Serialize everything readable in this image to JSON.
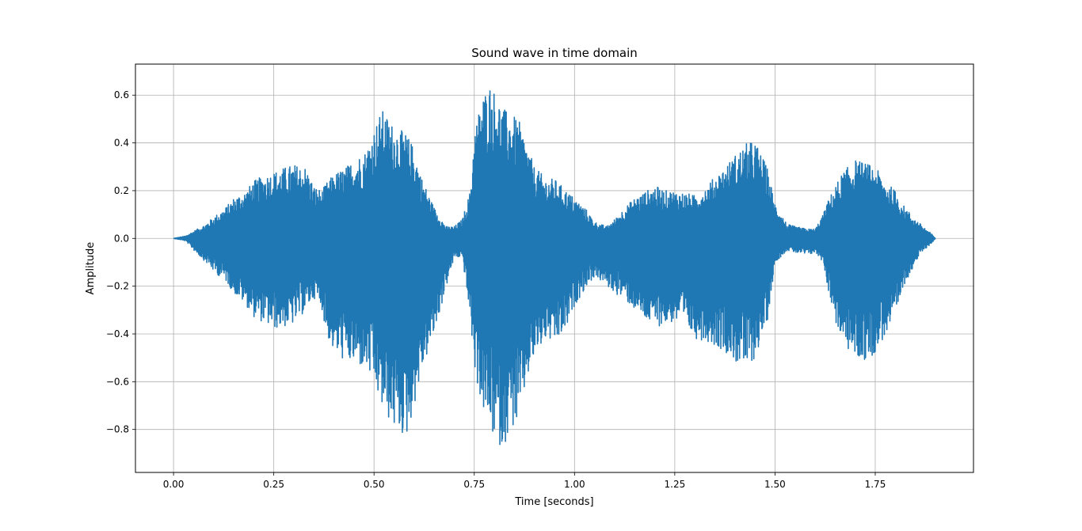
{
  "chart_data": {
    "type": "line",
    "title": "Sound wave in time domain",
    "xlabel": "Time [seconds]",
    "ylabel": "Amplitude",
    "xlim": [
      -0.095,
      1.995
    ],
    "ylim": [
      -0.98,
      0.73
    ],
    "grid": true,
    "xticks": [
      0.0,
      0.25,
      0.5,
      0.75,
      1.0,
      1.25,
      1.5,
      1.75
    ],
    "xtick_labels": [
      "0.00",
      "0.25",
      "0.50",
      "0.75",
      "1.00",
      "1.25",
      "1.50",
      "1.75"
    ],
    "yticks": [
      -0.8,
      -0.6,
      -0.4,
      -0.2,
      0.0,
      0.2,
      0.4,
      0.6
    ],
    "ytick_labels": [
      "−0.8",
      "−0.6",
      "−0.4",
      "−0.2",
      "0.0",
      "0.2",
      "0.4",
      "0.6"
    ],
    "series": [
      {
        "color": "#1f77b4",
        "envelope": {
          "t": [
            0.0,
            0.03,
            0.05,
            0.08,
            0.1,
            0.13,
            0.15,
            0.18,
            0.2,
            0.22,
            0.25,
            0.28,
            0.3,
            0.33,
            0.35,
            0.37,
            0.38,
            0.4,
            0.43,
            0.45,
            0.48,
            0.5,
            0.52,
            0.55,
            0.58,
            0.6,
            0.62,
            0.65,
            0.68,
            0.7,
            0.72,
            0.74,
            0.75,
            0.77,
            0.79,
            0.8,
            0.82,
            0.84,
            0.86,
            0.88,
            0.9,
            0.93,
            0.95,
            0.98,
            1.0,
            1.03,
            1.05,
            1.08,
            1.1,
            1.12,
            1.15,
            1.18,
            1.2,
            1.23,
            1.25,
            1.28,
            1.3,
            1.33,
            1.35,
            1.38,
            1.4,
            1.43,
            1.45,
            1.48,
            1.5,
            1.53,
            1.55,
            1.58,
            1.6,
            1.62,
            1.63,
            1.65,
            1.67,
            1.7,
            1.72,
            1.75,
            1.77,
            1.8,
            1.82,
            1.85,
            1.87,
            1.89,
            1.9
          ],
          "max": [
            0.0,
            0.01,
            0.03,
            0.06,
            0.09,
            0.13,
            0.17,
            0.2,
            0.24,
            0.26,
            0.28,
            0.3,
            0.31,
            0.3,
            0.22,
            0.2,
            0.23,
            0.27,
            0.3,
            0.33,
            0.37,
            0.46,
            0.54,
            0.47,
            0.44,
            0.38,
            0.25,
            0.13,
            0.05,
            0.05,
            0.08,
            0.2,
            0.45,
            0.6,
            0.65,
            0.62,
            0.55,
            0.52,
            0.5,
            0.4,
            0.3,
            0.25,
            0.25,
            0.2,
            0.17,
            0.12,
            0.07,
            0.05,
            0.08,
            0.12,
            0.17,
            0.2,
            0.22,
            0.2,
            0.2,
            0.19,
            0.18,
            0.22,
            0.26,
            0.31,
            0.35,
            0.4,
            0.41,
            0.3,
            0.15,
            0.06,
            0.05,
            0.04,
            0.04,
            0.1,
            0.15,
            0.22,
            0.28,
            0.33,
            0.32,
            0.3,
            0.25,
            0.2,
            0.14,
            0.08,
            0.05,
            0.02,
            0.0
          ],
          "min": [
            0.0,
            -0.01,
            -0.05,
            -0.1,
            -0.14,
            -0.18,
            -0.23,
            -0.28,
            -0.33,
            -0.35,
            -0.38,
            -0.37,
            -0.36,
            -0.3,
            -0.25,
            -0.3,
            -0.4,
            -0.48,
            -0.52,
            -0.53,
            -0.55,
            -0.62,
            -0.72,
            -0.8,
            -0.84,
            -0.7,
            -0.55,
            -0.4,
            -0.2,
            -0.08,
            -0.08,
            -0.35,
            -0.55,
            -0.72,
            -0.8,
            -0.85,
            -0.88,
            -0.8,
            -0.78,
            -0.6,
            -0.5,
            -0.42,
            -0.45,
            -0.38,
            -0.28,
            -0.2,
            -0.16,
            -0.2,
            -0.23,
            -0.25,
            -0.3,
            -0.35,
            -0.37,
            -0.36,
            -0.35,
            -0.38,
            -0.42,
            -0.43,
            -0.45,
            -0.48,
            -0.52,
            -0.55,
            -0.5,
            -0.35,
            -0.1,
            -0.05,
            -0.06,
            -0.07,
            -0.06,
            -0.1,
            -0.2,
            -0.35,
            -0.45,
            -0.5,
            -0.52,
            -0.48,
            -0.42,
            -0.35,
            -0.2,
            -0.1,
            -0.05,
            -0.02,
            0.0
          ]
        }
      }
    ]
  }
}
